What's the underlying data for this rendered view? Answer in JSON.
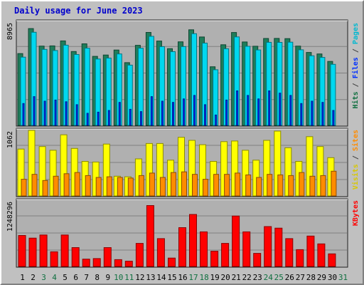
{
  "title": "Daily usage for June 2023",
  "colors": {
    "hits": "#1f7d5a",
    "files": "#00d8f0",
    "pages": "#0030ff",
    "visits": "#ffff00",
    "sites": "#ff8c00",
    "kbytes": "#ff0000",
    "weekday_label": "#000000",
    "weekend_label": "#107040"
  },
  "panel_labels": {
    "top": [
      {
        "text": "Hits",
        "color": "#107040"
      },
      {
        "text": " / ",
        "color": "#404040"
      },
      {
        "text": "Files",
        "color": "#0030ff"
      },
      {
        "text": " / ",
        "color": "#404040"
      },
      {
        "text": "Pages",
        "color": "#00b8d0"
      }
    ],
    "middle": [
      {
        "text": "Visits",
        "color": "#d8c800"
      },
      {
        "text": " / ",
        "color": "#404040"
      },
      {
        "text": "Sites",
        "color": "#ff8c00"
      }
    ],
    "bottom": [
      {
        "text": "KBytes",
        "color": "#ff0000"
      }
    ]
  },
  "chart_data": {
    "type": "bar",
    "title": "Daily usage for June 2023",
    "categories": [
      "1",
      "2",
      "3",
      "4",
      "5",
      "6",
      "7",
      "8",
      "9",
      "10",
      "11",
      "12",
      "13",
      "14",
      "15",
      "16",
      "17",
      "18",
      "19",
      "20",
      "21",
      "22",
      "23",
      "24",
      "25",
      "26",
      "27",
      "28",
      "29",
      "30",
      "31"
    ],
    "weekend_days": [
      "3",
      "4",
      "10",
      "11",
      "17",
      "18",
      "24",
      "25",
      "31"
    ],
    "panels": [
      {
        "name": "top",
        "max_label": "8965",
        "ylim": [
          0,
          8965
        ],
        "series": [
          {
            "name": "Hits",
            "values": [
              6230,
              8400,
              6880,
              6900,
              7330,
              6410,
              7080,
              5990,
              6110,
              6540,
              5450,
              6950,
              8070,
              7320,
              6660,
              7250,
              8300,
              7670,
              5090,
              7000,
              8060,
              7240,
              6870,
              7540,
              7550,
              7530,
              6880,
              6330,
              6200,
              5550,
              0
            ]
          },
          {
            "name": "Files",
            "values": [
              5920,
              8080,
              6600,
              6500,
              6960,
              6150,
              6700,
              5760,
              5840,
              6200,
              5230,
              6700,
              7730,
              6830,
              6400,
              6840,
              7960,
              7140,
              4830,
              6650,
              7680,
              6860,
              6550,
              7210,
              7200,
              7220,
              6560,
              6040,
              5900,
              5300,
              0
            ]
          },
          {
            "name": "Pages",
            "values": [
              1900,
              2500,
              2100,
              2200,
              2050,
              1800,
              1050,
              1150,
              1300,
              2000,
              1400,
              1200,
              2500,
              2100,
              2000,
              2300,
              2600,
              1800,
              900,
              2200,
              3000,
              2600,
              2300,
              3000,
              2800,
              2600,
              1900,
              2100,
              2000,
              1300,
              0
            ]
          }
        ]
      },
      {
        "name": "middle",
        "max_label": "1062",
        "ylim": [
          0,
          1062
        ],
        "series": [
          {
            "name": "Visits",
            "values": [
              760,
              1062,
              800,
              740,
              990,
              770,
              560,
              550,
              840,
              320,
              310,
              600,
              850,
              850,
              580,
              950,
              900,
              830,
              560,
              880,
              890,
              740,
              580,
              900,
              1050,
              780,
              560,
              960,
              800,
              620,
              0
            ]
          },
          {
            "name": "Sites",
            "values": [
              270,
              350,
              250,
              320,
              360,
              380,
              330,
              300,
              310,
              300,
              290,
              330,
              370,
              300,
              380,
              390,
              350,
              270,
              350,
              350,
              370,
              340,
              300,
              350,
              340,
              330,
              380,
              320,
              330,
              400,
              0
            ]
          }
        ]
      },
      {
        "name": "bottom",
        "max_label": "1248296",
        "ylim": [
          0,
          1248296
        ],
        "series": [
          {
            "name": "KBytes",
            "values": [
              590000,
              540000,
              600000,
              280000,
              600000,
              360000,
              140000,
              150000,
              360000,
              130000,
              100000,
              440000,
              1160000,
              530000,
              160000,
              740000,
              990000,
              660000,
              290000,
              440000,
              960000,
              660000,
              250000,
              760000,
              730000,
              530000,
              320000,
              580000,
              430000,
              240000,
              0
            ]
          }
        ]
      }
    ]
  }
}
